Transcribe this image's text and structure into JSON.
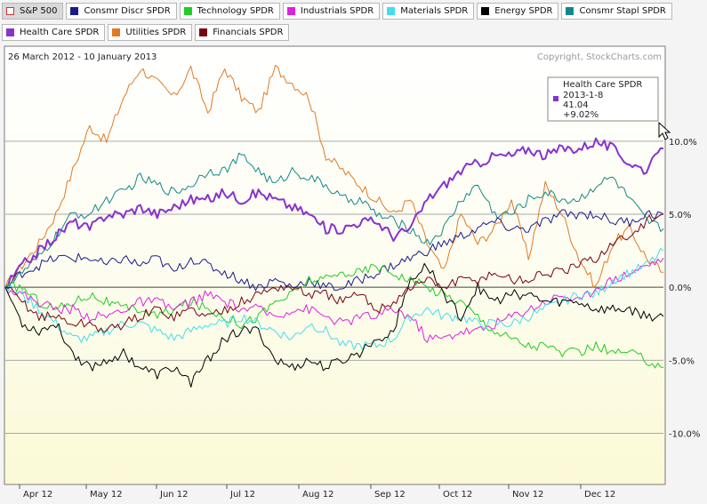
{
  "tabs": [
    {
      "label": "S&P 500",
      "color": "#ffffff",
      "active": true
    },
    {
      "label": "Consmr Discr SPDR",
      "color": "#1a1a8c"
    },
    {
      "label": "Technology SPDR",
      "color": "#22cc22"
    },
    {
      "label": "Industrials SPDR",
      "color": "#dd22dd"
    },
    {
      "label": "Materials SPDR",
      "color": "#44ddee"
    },
    {
      "label": "Energy SPDR",
      "color": "#000000"
    },
    {
      "label": "Consmr Stapl SPDR",
      "color": "#118888"
    },
    {
      "label": "Health Care SPDR",
      "color": "#8833cc"
    },
    {
      "label": "Utilities SPDR",
      "color": "#e07a22"
    },
    {
      "label": "Financials SPDR",
      "color": "#770011"
    }
  ],
  "header": {
    "date_range": "26 March 2012 - 10 January 2013",
    "copyright": "Copyright, StockCharts.com"
  },
  "tooltip": {
    "series": "Health Care SPDR",
    "date": "2013-1-8",
    "price": "41.04",
    "change": "+9.02%",
    "color": "#8833cc"
  },
  "chart_data": {
    "type": "line",
    "x_labels": [
      "Apr 12",
      "May 12",
      "Jun 12",
      "Jul 12",
      "Aug 12",
      "Sep 12",
      "Oct 12",
      "Nov 12",
      "Dec 12"
    ],
    "y_ticks": [
      10,
      5,
      0,
      -5,
      -10
    ],
    "y_tick_labels": [
      "10.0%",
      "5.0%",
      "0.0%",
      "-5.0%",
      "-10.0%"
    ],
    "ylim": [
      -13.5,
      16.5
    ],
    "grid": true,
    "series": [
      {
        "name": "Utilities SPDR",
        "color": "#e07a22",
        "values": [
          0,
          1.5,
          3,
          5,
          8,
          11,
          10,
          13,
          15,
          14,
          13,
          15,
          12,
          15,
          13,
          12,
          15,
          14,
          13,
          9,
          8,
          7,
          6,
          5,
          6,
          3,
          1,
          5,
          3,
          4,
          6,
          2,
          7,
          5,
          2,
          0,
          3,
          4,
          2,
          1
        ]
      },
      {
        "name": "Consmr Stapl SPDR",
        "color": "#118888",
        "values": [
          0,
          1,
          2,
          3.5,
          5,
          5,
          6,
          6.5,
          7.5,
          7,
          6.5,
          7,
          8,
          8,
          9,
          8,
          7,
          8,
          7.5,
          7,
          6,
          6,
          5,
          4.5,
          4,
          3,
          4,
          6,
          7,
          5,
          5,
          6,
          6.5,
          6,
          6,
          7,
          7.5,
          6,
          4.5,
          4
        ]
      },
      {
        "name": "Health Care SPDR",
        "color": "#8833cc",
        "values": [
          0,
          1.5,
          2.5,
          3.5,
          4.5,
          4,
          5,
          5,
          5.5,
          5,
          5.5,
          6,
          6,
          6.5,
          6,
          6.5,
          6,
          5.5,
          5,
          4,
          4,
          4.5,
          4.5,
          3.5,
          4,
          6,
          7,
          8,
          8.5,
          9,
          9,
          9.5,
          9,
          9.5,
          9.5,
          10,
          9.5,
          8.5,
          8,
          9.5
        ]
      },
      {
        "name": "Consmr Discr SPDR",
        "color": "#1a1a8c",
        "values": [
          0,
          1,
          1.5,
          2,
          2,
          2,
          1.5,
          2,
          1.5,
          2,
          1,
          2,
          1.5,
          1,
          0.5,
          0,
          0.5,
          0,
          0.5,
          0,
          0,
          0.5,
          1,
          1.5,
          2,
          2.5,
          3,
          3.5,
          4,
          4.5,
          4,
          4,
          4.5,
          5,
          5,
          5,
          4.5,
          4.5,
          5,
          5
        ]
      },
      {
        "name": "Technology SPDR",
        "color": "#22cc22",
        "values": [
          0,
          0,
          -1,
          -1.5,
          -1,
          -0.5,
          -1,
          -1.5,
          -1.5,
          -2,
          -1.5,
          -1,
          -1.5,
          -2,
          -2.5,
          -2,
          -1,
          -0.5,
          0.5,
          0.5,
          1,
          1,
          1.5,
          1,
          0.5,
          0,
          -0.5,
          -1,
          -2,
          -3,
          -3.5,
          -4,
          -4,
          -4.5,
          -4.5,
          -4,
          -4.5,
          -4.5,
          -5,
          -5.5
        ]
      },
      {
        "name": "Industrials SPDR",
        "color": "#dd22dd",
        "values": [
          0,
          -0.5,
          -1,
          -1.5,
          -1.5,
          -2,
          -2,
          -1.5,
          -1,
          -1,
          -1.5,
          -1,
          -0.5,
          -1,
          -1.5,
          -1.5,
          -2,
          -1.5,
          -1.5,
          -2,
          -2.5,
          -2,
          -2,
          -1.5,
          -2,
          -3.5,
          -3.5,
          -3,
          -3,
          -2.5,
          -2,
          -1.5,
          -1,
          -0.5,
          -1,
          0,
          0.5,
          1,
          1.5,
          2
        ]
      },
      {
        "name": "Materials SPDR",
        "color": "#44ddee",
        "values": [
          0,
          -0.5,
          -1.5,
          -2.5,
          -3.5,
          -3.5,
          -3,
          -2.5,
          -2.5,
          -3,
          -3.5,
          -3,
          -2.5,
          -2.5,
          -2,
          -2.5,
          -3,
          -3.5,
          -2.5,
          -3,
          -4,
          -4,
          -4,
          -3.5,
          -2,
          -1.5,
          -2,
          -2,
          -2.5,
          -2.5,
          -2.5,
          -2,
          -1.5,
          -1,
          -0.5,
          -0.5,
          0.5,
          1,
          1.5,
          2.5
        ]
      },
      {
        "name": "Energy SPDR",
        "color": "#000000",
        "values": [
          0,
          -2.5,
          -3,
          -2.5,
          -4.5,
          -5.5,
          -5,
          -4.5,
          -5.5,
          -6,
          -5.5,
          -6.5,
          -5,
          -3.5,
          -3,
          -3,
          -5,
          -5.5,
          -5,
          -5.5,
          -5,
          -4.5,
          -3.5,
          -3,
          0.5,
          1.5,
          -0.5,
          -2,
          0,
          -1,
          -0.5,
          -0.5,
          -1,
          -1,
          -1,
          -1.5,
          -1.5,
          -1.5,
          -2,
          -2
        ]
      },
      {
        "name": "Financials SPDR",
        "color": "#770011",
        "values": [
          0,
          -1,
          -2,
          -2,
          -2.5,
          -2.5,
          -3,
          -2.5,
          -2,
          -1.5,
          -2,
          -1.5,
          -2,
          -1.5,
          -1,
          -0.5,
          0,
          0,
          -0.5,
          -0.5,
          -1,
          -0.5,
          -1.5,
          -1,
          0,
          0.5,
          0,
          0.5,
          0.5,
          1,
          0.5,
          0.5,
          1,
          1,
          1.5,
          2,
          3,
          3.5,
          4.5,
          5
        ]
      }
    ]
  }
}
